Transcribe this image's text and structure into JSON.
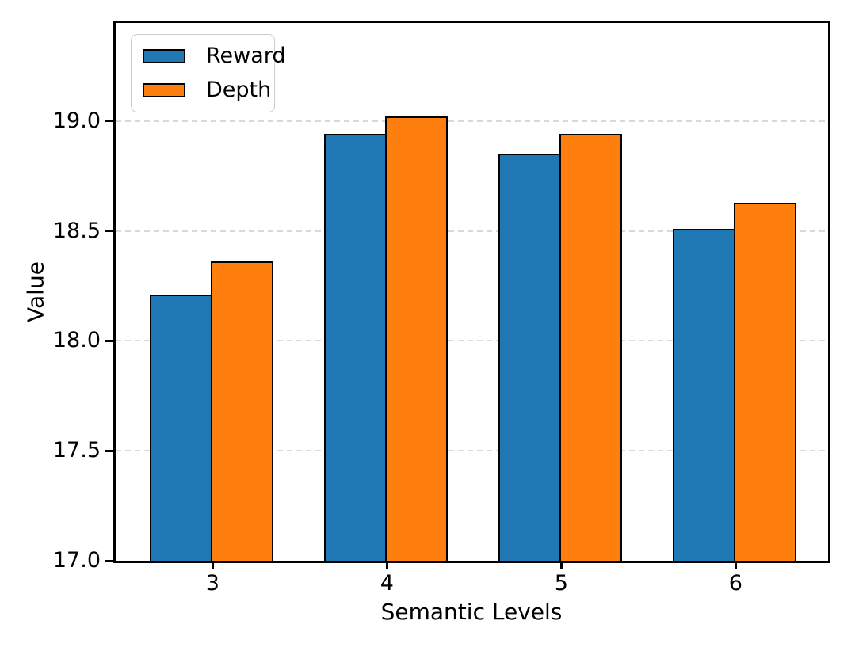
{
  "chart_data": {
    "type": "bar",
    "xlabel": "Semantic Levels",
    "ylabel": "Value",
    "categories": [
      "3",
      "4",
      "5",
      "6"
    ],
    "series": [
      {
        "name": "Reward",
        "color": "#1f77b4",
        "values": [
          18.21,
          18.94,
          18.85,
          18.51
        ]
      },
      {
        "name": "Depth",
        "color": "#ff7f0e",
        "values": [
          18.36,
          19.02,
          18.94,
          18.63
        ]
      }
    ],
    "ylim": [
      17.0,
      19.446
    ],
    "yticks": [
      17.0,
      17.5,
      18.0,
      18.5,
      19.0
    ],
    "ytick_format_decimals": 1,
    "grid": "horizontal-dashed",
    "grid_color": "#d9d9d9",
    "bar_edge_color": "#000000",
    "axis_color": "#000000",
    "legend_position": "upper-left",
    "background_color": "#ffffff"
  }
}
